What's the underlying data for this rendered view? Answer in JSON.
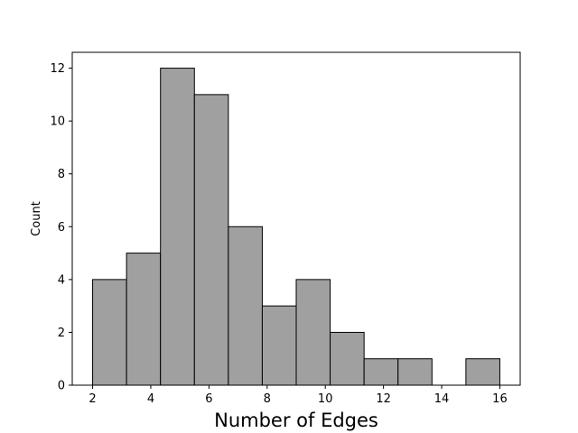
{
  "chart_data": {
    "type": "bar",
    "subtype": "histogram",
    "xlabel": "Number of Edges",
    "ylabel": "Count",
    "bin_width": 1.1667,
    "bins": [
      {
        "start": 2.0,
        "end": 3.1667,
        "count": 4
      },
      {
        "start": 3.1667,
        "end": 4.3333,
        "count": 5
      },
      {
        "start": 4.3333,
        "end": 5.5,
        "count": 12
      },
      {
        "start": 5.5,
        "end": 6.6667,
        "count": 11
      },
      {
        "start": 6.6667,
        "end": 7.8333,
        "count": 6
      },
      {
        "start": 7.8333,
        "end": 9.0,
        "count": 3
      },
      {
        "start": 9.0,
        "end": 10.1667,
        "count": 4
      },
      {
        "start": 10.1667,
        "end": 11.3333,
        "count": 2
      },
      {
        "start": 11.3333,
        "end": 12.5,
        "count": 1
      },
      {
        "start": 12.5,
        "end": 13.6667,
        "count": 1
      },
      {
        "start": 13.6667,
        "end": 14.8333,
        "count": 0
      },
      {
        "start": 14.8333,
        "end": 16.0,
        "count": 1
      }
    ],
    "xlim": [
      1.3,
      16.7
    ],
    "ylim": [
      0,
      12.6
    ],
    "xticks": [
      2,
      4,
      6,
      8,
      10,
      12,
      14,
      16
    ],
    "xtick_labels": [
      "2",
      "4",
      "6",
      "8",
      "10",
      "12",
      "14",
      "16"
    ],
    "yticks": [
      0,
      2,
      4,
      6,
      8,
      10,
      12
    ],
    "ytick_labels": [
      "0",
      "2",
      "4",
      "6",
      "8",
      "10",
      "12"
    ],
    "grid": false,
    "colors": {
      "bar_fill": "#a0a0a0",
      "bar_edge": "#000000"
    }
  }
}
